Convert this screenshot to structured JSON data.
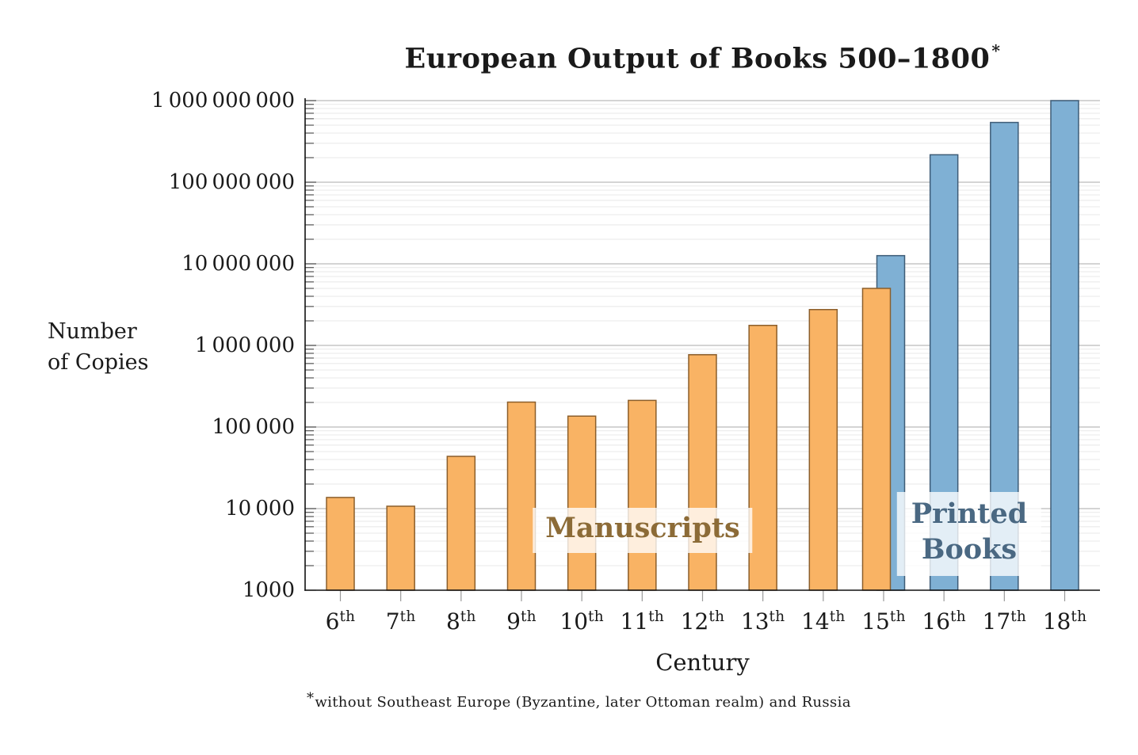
{
  "chart_data": {
    "type": "bar",
    "title": "European Output of Books 500–1800",
    "title_superscript": "*",
    "ylabel_lines": [
      "Number",
      "of Copies"
    ],
    "xlabel": "Century",
    "yscale": "log",
    "ylim": [
      1000,
      1000000000
    ],
    "grid": "on",
    "legend_position": "in-plot text annotations",
    "ytick_values": [
      1000,
      10000,
      100000,
      1000000,
      10000000,
      100000000,
      1000000000
    ],
    "ytick_labels": [
      "1000",
      "10 000",
      "100 000",
      "1 000 000",
      "10 000 000",
      "100 000 000",
      "1 000 000 000"
    ],
    "categories": [
      "6",
      "7",
      "8",
      "9",
      "10",
      "11",
      "12",
      "13",
      "14",
      "15",
      "16",
      "17",
      "18"
    ],
    "ordinal_suffix": "th",
    "series": [
      {
        "name": "Manuscripts",
        "fill": "#F9B364",
        "stroke": "#8B5E2B",
        "categories": [
          "6",
          "7",
          "8",
          "9",
          "10",
          "11",
          "12",
          "13",
          "14",
          "15"
        ],
        "values": [
          13700,
          10700,
          43700,
          202000,
          136000,
          212000,
          769000,
          1760000,
          2750000,
          5000000
        ]
      },
      {
        "name": "Printed Books",
        "fill": "#7FB0D4",
        "stroke": "#3E5C77",
        "categories": [
          "15",
          "16",
          "17",
          "18"
        ],
        "values": [
          12600000,
          217000000,
          540000000,
          1000000000
        ]
      }
    ],
    "annotations": [
      {
        "id": "manuscripts",
        "lines": [
          "Manuscripts"
        ],
        "color": "#8C6B37"
      },
      {
        "id": "printed-books",
        "lines": [
          "Printed",
          "Books"
        ],
        "color": "#4A6882"
      }
    ],
    "footnote_marker": "*",
    "footnote_text": "without Southeast Europe (Byzantine, later Ottoman realm) and Russia"
  }
}
